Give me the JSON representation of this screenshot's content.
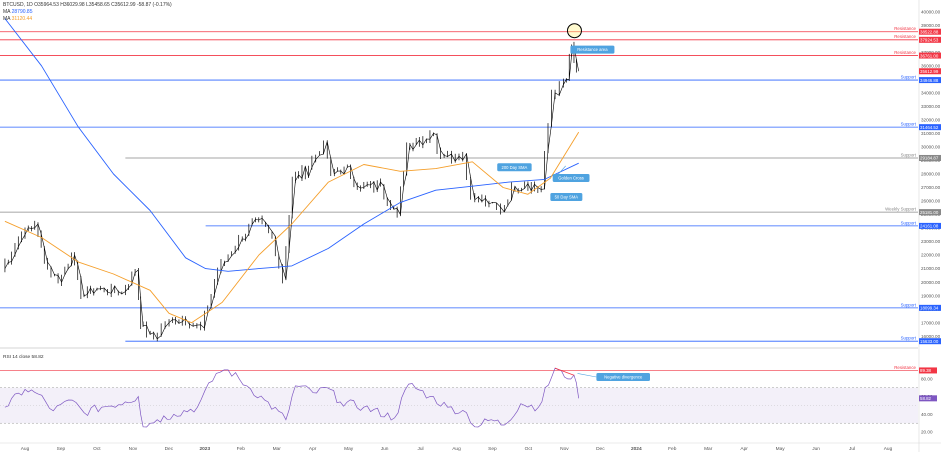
{
  "header": {
    "line1": "BTCUSD, 1D  O35964.53  H36029.98  L35458.65  C35612.99  -58.87 (-0.17%)",
    "line2_label": "MA",
    "line2_value": "28790.85",
    "line3_label": "MA",
    "line3_value": "31120.44"
  },
  "chart_data": [
    {
      "type": "line",
      "title": "BTCUSD 1D",
      "x_labels": [
        "Aug",
        "Sep",
        "Oct",
        "Nov",
        "Dec",
        "2023",
        "Feb",
        "Mar",
        "Apr",
        "May",
        "Jun",
        "Jul",
        "Aug",
        "Sep",
        "Oct",
        "Nov",
        "Dec",
        "2024",
        "Feb",
        "Mar",
        "Apr",
        "May",
        "Jun",
        "Jul",
        "Aug"
      ],
      "y_ticks": [
        16000,
        17000,
        18000,
        19000,
        20000,
        21000,
        22000,
        23000,
        24000,
        25000,
        26000,
        27000,
        28000,
        29000,
        30000,
        31000,
        32000,
        33000,
        34000,
        35000,
        36000,
        37000,
        38000,
        39000,
        40000
      ],
      "ylim": [
        15500,
        40500
      ],
      "series": [
        {
          "name": "Price",
          "color": "#000000",
          "x": [
            "2022-07-15",
            "2022-08-01",
            "2022-08-12",
            "2022-08-20",
            "2022-09-01",
            "2022-09-12",
            "2022-09-20",
            "2022-10-01",
            "2022-10-25",
            "2022-11-05",
            "2022-11-09",
            "2022-11-21",
            "2022-12-01",
            "2022-12-15",
            "2022-12-31",
            "2023-01-14",
            "2023-02-01",
            "2023-02-15",
            "2023-03-01",
            "2023-03-10",
            "2023-03-18",
            "2023-04-01",
            "2023-04-14",
            "2023-04-20",
            "2023-05-01",
            "2023-05-15",
            "2023-06-01",
            "2023-06-15",
            "2023-06-23",
            "2023-07-01",
            "2023-07-13",
            "2023-07-25",
            "2023-08-10",
            "2023-08-17",
            "2023-09-01",
            "2023-09-11",
            "2023-09-20",
            "2023-10-01",
            "2023-10-15",
            "2023-10-24",
            "2023-10-31",
            "2023-11-05",
            "2023-11-09",
            "2023-11-13"
          ],
          "y": [
            21000,
            23500,
            24300,
            21500,
            20000,
            22000,
            19000,
            19500,
            19300,
            20900,
            16800,
            15800,
            17000,
            17300,
            16600,
            20800,
            23200,
            24600,
            23400,
            20200,
            27500,
            28500,
            30400,
            28000,
            28500,
            27000,
            27100,
            25000,
            30200,
            30500,
            31000,
            29300,
            29500,
            26100,
            25900,
            25200,
            27100,
            27300,
            26900,
            34000,
            34600,
            35000,
            37500,
            35600
          ]
        },
        {
          "name": "MA 28790.85",
          "color": "#2962ff",
          "x": [
            "2022-07-15",
            "2022-08-15",
            "2022-09-15",
            "2022-10-15",
            "2022-11-15",
            "2022-12-15",
            "2023-01-01",
            "2023-01-20",
            "2023-02-15",
            "2023-03-15",
            "2023-04-15",
            "2023-05-15",
            "2023-06-15",
            "2023-07-15",
            "2023-08-15",
            "2023-09-15",
            "2023-10-15",
            "2023-11-13"
          ],
          "y": [
            39500,
            36000,
            31500,
            28000,
            25300,
            21800,
            21000,
            20800,
            21000,
            21200,
            22500,
            24300,
            25900,
            26800,
            27100,
            27400,
            27600,
            28800
          ]
        },
        {
          "name": "MA 31120.44",
          "color": "#f59f2b",
          "x": [
            "2022-07-15",
            "2022-08-15",
            "2022-09-15",
            "2022-10-15",
            "2022-11-15",
            "2022-12-01",
            "2022-12-20",
            "2023-01-15",
            "2023-02-15",
            "2023-03-15",
            "2023-04-15",
            "2023-05-15",
            "2023-06-15",
            "2023-07-15",
            "2023-08-15",
            "2023-09-10",
            "2023-10-01",
            "2023-10-20",
            "2023-11-13"
          ],
          "y": [
            24500,
            23300,
            21500,
            20600,
            19400,
            17700,
            17000,
            18500,
            22000,
            24300,
            27400,
            28700,
            28200,
            28400,
            28900,
            27000,
            26500,
            27700,
            31100
          ]
        }
      ],
      "price_labels": [
        "40000.00",
        "39000.00",
        "38000.00",
        "37000.00",
        "36000.00",
        "35000.00",
        "34000.00",
        "33000.00",
        "32000.00",
        "31000.00",
        "30000.00",
        "29000.00",
        "28000.00",
        "27000.00",
        "26000.00",
        "25000.00",
        "24000.00",
        "23000.00",
        "22000.00",
        "21000.00",
        "20000.00",
        "19000.00",
        "18000.00",
        "17000.00",
        "16000.00"
      ],
      "levels": [
        {
          "label": "Resistance",
          "value_text": "38522.88",
          "value": 38522.88,
          "color": "#f23645",
          "style": "solid",
          "start": "2022-07-15"
        },
        {
          "label": "Resistance",
          "value_text": "37924.53",
          "value": 37924.53,
          "color": "#f23645",
          "style": "solid",
          "start": "2022-07-15"
        },
        {
          "label": "Resistance",
          "value_text": "36761.00",
          "value": 36761,
          "color": "#f23645",
          "style": "solid",
          "start": "2022-07-15"
        },
        {
          "label": "Support",
          "value_text": "34946.88",
          "value": 34946.88,
          "color": "#2962ff",
          "style": "solid",
          "start": "2022-07-15"
        },
        {
          "label": "Support",
          "value_text": "31464.52",
          "value": 31464.52,
          "color": "#2962ff",
          "style": "solid",
          "start": "2022-07-15"
        },
        {
          "label": "Support",
          "value_text": "29184.87",
          "value": 29184.87,
          "color": "#888888",
          "style": "solid",
          "start": "2022-10-25"
        },
        {
          "label": "Weekly Support",
          "value_text": "25181.00",
          "value": 25181,
          "color": "#888888",
          "style": "solid",
          "start": "2022-07-15"
        },
        {
          "label": "Support",
          "value_text": "24161.08",
          "value": 24161.08,
          "color": "#2962ff",
          "style": "solid",
          "start": "2023-01-01"
        },
        {
          "label": "Support",
          "value_text": "18099.34",
          "value": 18099.34,
          "color": "#2962ff",
          "style": "solid",
          "start": "2022-07-15"
        },
        {
          "label": "Support",
          "value_text": "15633.00",
          "value": 15633,
          "color": "#2962ff",
          "style": "solid",
          "start": "2022-10-25"
        }
      ],
      "current_price_text": "35612.99",
      "annotations": [
        {
          "text": "Resistance area",
          "x": "2023-11-06",
          "y": 37200
        },
        {
          "text": "200 Day SMA",
          "x": "2023-09-05",
          "y": 28500
        },
        {
          "text": "Golden Cross",
          "x": "2023-10-22",
          "y": 27700
        },
        {
          "text": "50 Day SMA",
          "x": "2023-10-20",
          "y": 26300
        }
      ]
    },
    {
      "type": "line",
      "title": "RSI",
      "header": "RSI  14  close  58.82",
      "ylim": [
        10,
        100
      ],
      "y_labels": [
        {
          "v": 80,
          "t": "80.00"
        },
        {
          "v": 60,
          "t": "60.00"
        },
        {
          "v": 40,
          "t": "40.00"
        },
        {
          "v": 20,
          "t": "20.00"
        }
      ],
      "upper_band": 70,
      "lower_band": 30,
      "series": [
        {
          "name": "RSI",
          "color": "#7e57c2",
          "x": [
            "2022-07-15",
            "2022-08-01",
            "2022-08-12",
            "2022-08-25",
            "2022-09-10",
            "2022-09-20",
            "2022-10-05",
            "2022-10-25",
            "2022-11-05",
            "2022-11-09",
            "2022-11-21",
            "2022-12-05",
            "2022-12-25",
            "2023-01-10",
            "2023-01-20",
            "2023-02-05",
            "2023-02-20",
            "2023-03-10",
            "2023-03-18",
            "2023-04-05",
            "2023-04-14",
            "2023-04-25",
            "2023-05-15",
            "2023-06-10",
            "2023-06-22",
            "2023-07-10",
            "2023-07-25",
            "2023-08-10",
            "2023-08-17",
            "2023-08-31",
            "2023-09-11",
            "2023-09-25",
            "2023-10-10",
            "2023-10-24",
            "2023-11-01",
            "2023-11-09",
            "2023-11-13"
          ],
          "y": [
            48,
            68,
            63,
            44,
            56,
            42,
            48,
            54,
            60,
            26,
            34,
            40,
            48,
            86,
            90,
            72,
            56,
            34,
            72,
            64,
            70,
            54,
            48,
            36,
            74,
            60,
            48,
            42,
            26,
            34,
            28,
            52,
            48,
            92,
            82,
            84,
            58
          ]
        }
      ],
      "levels": [
        {
          "label": "Resistance",
          "value_text": "89.38",
          "value": 89.38,
          "color": "#f23645"
        }
      ],
      "current_value_text": "58.82",
      "annotations": [
        {
          "text": "Negative divergence",
          "x": "2023-11-28",
          "y": 82
        }
      ]
    }
  ]
}
